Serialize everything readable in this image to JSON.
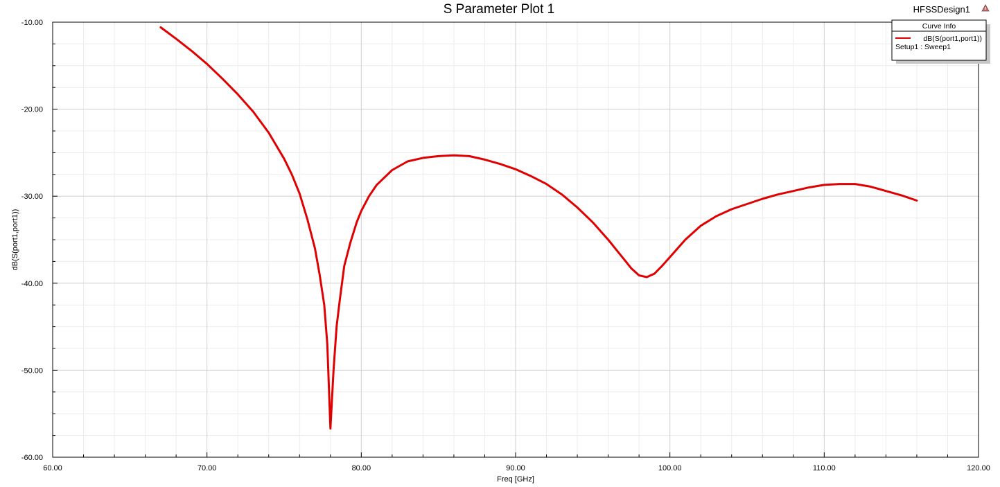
{
  "chart_data": {
    "type": "line",
    "title": "S Parameter Plot 1",
    "design_name": "HFSSDesign1",
    "xlabel": "Freq [GHz]",
    "ylabel": "dB(S(port1,port1))",
    "xlim": [
      60,
      120
    ],
    "ylim": [
      -60,
      -10
    ],
    "x_ticks": [
      60,
      70,
      80,
      90,
      100,
      110,
      120
    ],
    "x_tick_labels": [
      "60.00",
      "70.00",
      "80.00",
      "90.00",
      "100.00",
      "110.00",
      "120.00"
    ],
    "y_ticks": [
      -10,
      -20,
      -30,
      -40,
      -50,
      -60
    ],
    "y_tick_labels": [
      "-10.00",
      "-20.00",
      "-30.00",
      "-40.00",
      "-50.00",
      "-60.00"
    ],
    "grid": true,
    "legend": {
      "title": "Curve Info",
      "position": "top-right",
      "entry": "dB(S(port1,port1))",
      "sub": "Setup1 : Sweep1"
    },
    "series": [
      {
        "name": "dB(S(port1,port1))",
        "color": "#e00000",
        "x": [
          67,
          68,
          69,
          70,
          71,
          72,
          73,
          74,
          75,
          75.5,
          76,
          76.5,
          77,
          77.3,
          77.6,
          77.8,
          78,
          78.2,
          78.4,
          78.6,
          78.9,
          79.3,
          79.7,
          80,
          80.5,
          81,
          82,
          83,
          84,
          85,
          86,
          87,
          88,
          89,
          90,
          91,
          92,
          93,
          94,
          95,
          96,
          97,
          97.5,
          98,
          98.5,
          99,
          99.5,
          100,
          101,
          102,
          103,
          104,
          105,
          106,
          107,
          108,
          109,
          110,
          111,
          112,
          113,
          114,
          115,
          116
        ],
        "y": [
          -10.6,
          -11.9,
          -13.3,
          -14.8,
          -16.5,
          -18.3,
          -20.3,
          -22.7,
          -25.7,
          -27.5,
          -29.7,
          -32.6,
          -36.0,
          -39.0,
          -42.5,
          -47.0,
          -56.7,
          -50.0,
          -45.0,
          -42.0,
          -38.0,
          -35.3,
          -33.0,
          -31.7,
          -30.0,
          -28.7,
          -27.0,
          -26.0,
          -25.6,
          -25.4,
          -25.3,
          -25.4,
          -25.8,
          -26.3,
          -26.9,
          -27.7,
          -28.6,
          -29.8,
          -31.3,
          -33.0,
          -35.0,
          -37.2,
          -38.3,
          -39.1,
          -39.3,
          -38.9,
          -38.0,
          -37.0,
          -35.0,
          -33.4,
          -32.3,
          -31.5,
          -30.9,
          -30.3,
          -29.8,
          -29.4,
          -29.0,
          -28.7,
          -28.6,
          -28.6,
          -28.9,
          -29.4,
          -29.9,
          -30.5
        ]
      }
    ]
  }
}
